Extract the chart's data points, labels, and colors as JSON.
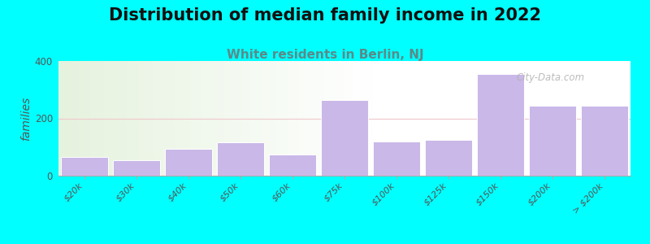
{
  "title": "Distribution of median family income in 2022",
  "subtitle": "White residents in Berlin, NJ",
  "ylabel": "families",
  "categories": [
    "$20k",
    "$30k",
    "$40k",
    "$50k",
    "$60k",
    "$75k",
    "$100k",
    "$125k",
    "$150k",
    "$200k",
    "> $200k"
  ],
  "values": [
    65,
    55,
    95,
    115,
    75,
    265,
    120,
    125,
    355,
    245,
    245
  ],
  "bar_color": "#c9b8e8",
  "bar_edgecolor": "#ffffff",
  "background_color": "#00ffff",
  "title_fontsize": 15,
  "subtitle_fontsize": 11,
  "subtitle_color": "#5a8a8a",
  "ylabel_fontsize": 10,
  "ylim": [
    0,
    400
  ],
  "yticks": [
    0,
    200,
    400
  ],
  "watermark": "City-Data.com",
  "grid_color": "#f0c8cc",
  "bar_width": 0.9,
  "gradient_cutoff": 0.55
}
